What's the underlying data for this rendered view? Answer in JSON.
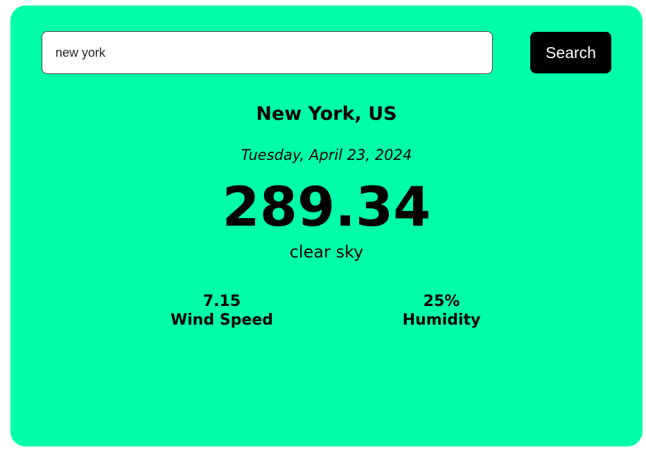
{
  "search": {
    "value": "new york",
    "button_label": "Search"
  },
  "weather": {
    "location": "New York, US",
    "date": "Tuesday, April 23, 2024",
    "temperature": "289.34",
    "description": "clear sky",
    "wind_speed_value": "7.15",
    "wind_speed_label": "Wind Speed",
    "humidity_value": "25%",
    "humidity_label": "Humidity"
  },
  "colors": {
    "card_background": "#00FFA8",
    "button_background": "#000000",
    "button_text": "#FFFFFF"
  }
}
